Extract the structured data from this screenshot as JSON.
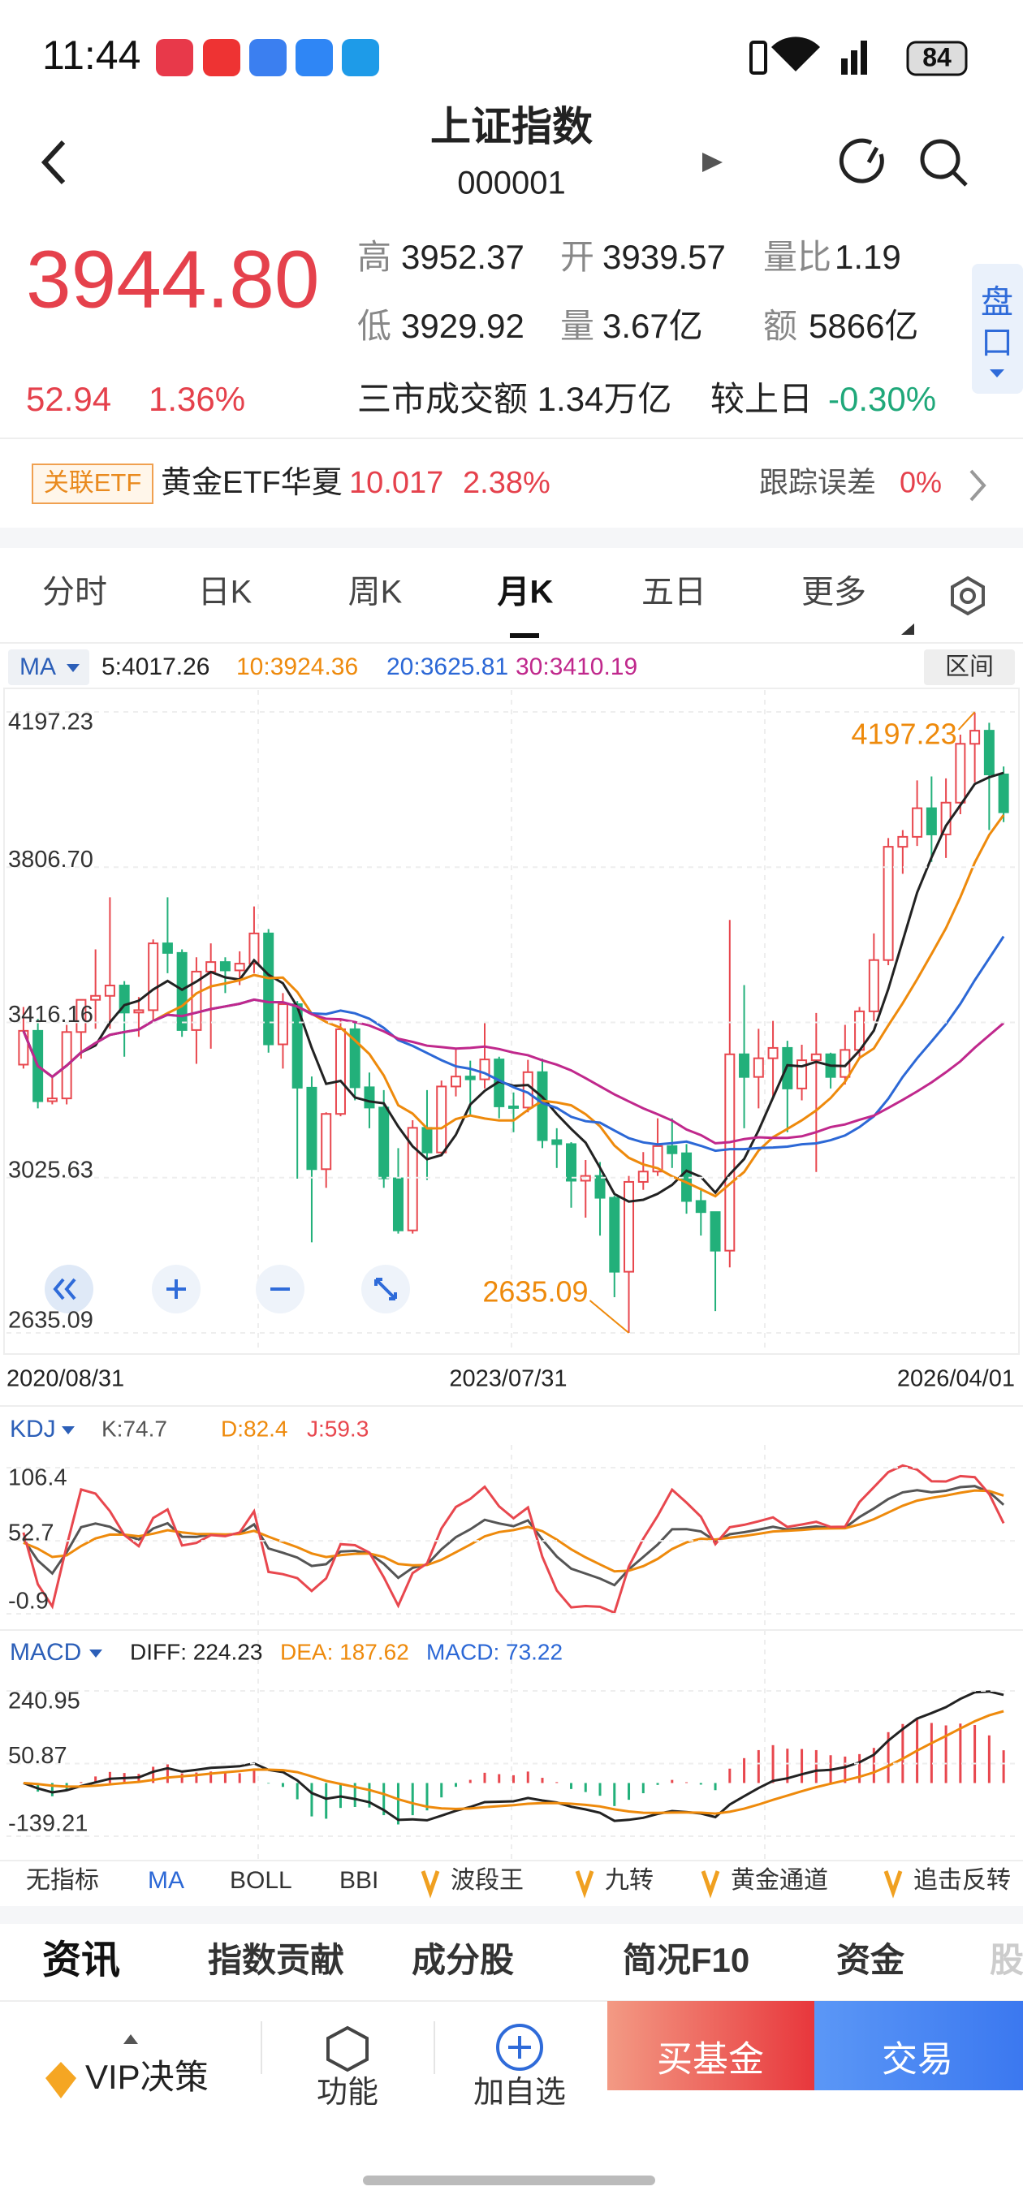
{
  "status_bar": {
    "time": "11:44",
    "battery": "84"
  },
  "header": {
    "title": "上证指数",
    "code": "000001"
  },
  "quote": {
    "price": "3944.80",
    "change": "52.94",
    "change_pct": "1.36%",
    "high_label": "高",
    "high": "3952.37",
    "open_label": "开",
    "open": "3939.57",
    "vol_ratio_label": "量比",
    "vol_ratio": "1.19",
    "low_label": "低",
    "low": "3929.92",
    "volume_label": "量",
    "volume": "3.67亿",
    "amount_label": "额",
    "amount": "5866亿",
    "market_turnover": "三市成交额 1.34万亿",
    "vs_prev_label": "较上日",
    "vs_prev": "-0.30%",
    "side_button": [
      "盘",
      "口"
    ]
  },
  "etf": {
    "tag": "关联ETF",
    "name": "黄金ETF华夏",
    "price": "10.017",
    "pct": "2.38%",
    "tracking_label": "跟踪误差",
    "tracking": "0%"
  },
  "period_tabs": [
    "分时",
    "日K",
    "周K",
    "月K",
    "五日",
    "更多"
  ],
  "chart_data": [
    {
      "type": "candlestick",
      "indicator": "MA",
      "range_button": "区间",
      "ma": [
        {
          "name": "5:4017.26",
          "color": "#222222"
        },
        {
          "name": "10:3924.36",
          "color": "#ee8a0c"
        },
        {
          "name": "20:3625.81",
          "color": "#2c68d6"
        },
        {
          "name": "30:3410.19",
          "color": "#c0288c"
        }
      ],
      "x_labels": [
        "2020/08/31",
        "2023/07/31",
        "2026/04/01"
      ],
      "open": [
        3310,
        3395,
        3218,
        3225,
        3392,
        3473,
        3483,
        3509,
        3441,
        3447,
        3615,
        3591,
        3397,
        3544,
        3568,
        3547,
        3564,
        3640,
        3361,
        3462,
        3252,
        3047,
        3186,
        3399,
        3253,
        3202,
        3024,
        2893,
        3151,
        3089,
        3255,
        3280,
        3273,
        3323,
        3205,
        3202,
        3291,
        3120,
        3110,
        3018,
        3030,
        2975,
        2789,
        3015,
        3041,
        3105,
        3087,
        2967,
        2939,
        2842,
        3336,
        3279,
        3326,
        3352,
        3250,
        3321,
        3336,
        3279,
        3347,
        3444,
        3573,
        3858,
        3883,
        3955,
        3889,
        3969,
        4117,
        4150,
        4040
      ],
      "high": [
        3455,
        3425,
        3280,
        3410,
        3474,
        3600,
        3731,
        3520,
        3480,
        3625,
        3731,
        3600,
        3580,
        3615,
        3580,
        3595,
        3708,
        3651,
        3490,
        3470,
        3280,
        3190,
        3424,
        3420,
        3290,
        3246,
        3100,
        3170,
        3246,
        3270,
        3350,
        3320,
        3418,
        3330,
        3240,
        3322,
        3325,
        3150,
        3115,
        3070,
        3065,
        2980,
        3030,
        3090,
        3175,
        3175,
        3110,
        3000,
        2940,
        3674,
        3510,
        3400,
        3420,
        3370,
        3360,
        3440,
        3340,
        3410,
        3455,
        3640,
        3880,
        3900,
        4025,
        4035,
        4030,
        4140,
        4197.23,
        4170,
        4060
      ],
      "low": [
        3300,
        3200,
        3210,
        3210,
        3325,
        3400,
        3400,
        3330,
        3380,
        3420,
        3540,
        3380,
        3312,
        3350,
        3490,
        3510,
        3540,
        3340,
        3300,
        3023,
        2863,
        3000,
        3180,
        3220,
        3150,
        3000,
        2885,
        2885,
        3020,
        3080,
        3230,
        3180,
        3250,
        3175,
        3140,
        3190,
        3100,
        3050,
        2950,
        2925,
        2880,
        2725,
        2635.09,
        2995,
        3030,
        3050,
        2935,
        2880,
        2690,
        2800,
        3150,
        3200,
        3230,
        3140,
        3220,
        3040,
        3250,
        3260,
        3330,
        3420,
        3560,
        3790,
        3860,
        3820,
        3830,
        3940,
        4020,
        3900,
        3920
      ],
      "close": [
        3395,
        3218,
        3225,
        3392,
        3473,
        3483,
        3509,
        3441,
        3447,
        3615,
        3591,
        3397,
        3544,
        3568,
        3547,
        3564,
        3640,
        3361,
        3462,
        3252,
        3047,
        3186,
        3399,
        3253,
        3202,
        3024,
        2893,
        3151,
        3089,
        3255,
        3280,
        3273,
        3323,
        3205,
        3202,
        3291,
        3120,
        3110,
        3018,
        3030,
        2975,
        2789,
        3015,
        3041,
        3105,
        3087,
        2967,
        2939,
        2842,
        3336,
        3279,
        3326,
        3352,
        3250,
        3321,
        3336,
        3279,
        3347,
        3444,
        3573,
        3858,
        3883,
        3955,
        3889,
        3969,
        4117,
        4150,
        4040,
        3944.8
      ],
      "ylim": [
        2635.09,
        4197.23
      ],
      "yticks": [
        4197.23,
        {
          "value": 3806.7,
          "label": "3806.70"
        },
        3416.16,
        3025.63,
        2635.09
      ],
      "up_color": "#e8474e",
      "down_color": "#22b07a"
    },
    {
      "type": "kdj",
      "indicator": "KDJ",
      "series": [
        {
          "name": "K:74.7",
          "color": "#555555"
        },
        {
          "name": "D:82.4",
          "color": "#ee8a0c"
        },
        {
          "name": "J:59.3",
          "color": "#e8474e"
        }
      ],
      "ylim": [
        -0.9,
        106.4
      ],
      "yticks": [
        106.4,
        52.7,
        -0.9
      ]
    },
    {
      "type": "macd",
      "indicator": "MACD",
      "series": [
        {
          "name": "DIFF: 224.23",
          "color": "#222222"
        },
        {
          "name": "DEA: 187.62",
          "color": "#ee8a0c"
        },
        {
          "name": "MACD: 73.22",
          "color": "#2c68d6"
        }
      ],
      "ylim": [
        -139.21,
        240.95
      ],
      "yticks": [
        240.95,
        50.87,
        -139.21
      ]
    }
  ],
  "indicator_tabs": [
    "无指标",
    "MA",
    "BOLL",
    "BBI",
    "波段王",
    "九转",
    "黄金通道",
    "追击反转"
  ],
  "news_tabs": [
    "资讯",
    "指数贡献",
    "成分股",
    "简况F10",
    "资金",
    "股"
  ],
  "bottom_bar": {
    "vip": "VIP决策",
    "func": "功能",
    "add": "加自选",
    "buy": "买基金",
    "trade": "交易"
  }
}
